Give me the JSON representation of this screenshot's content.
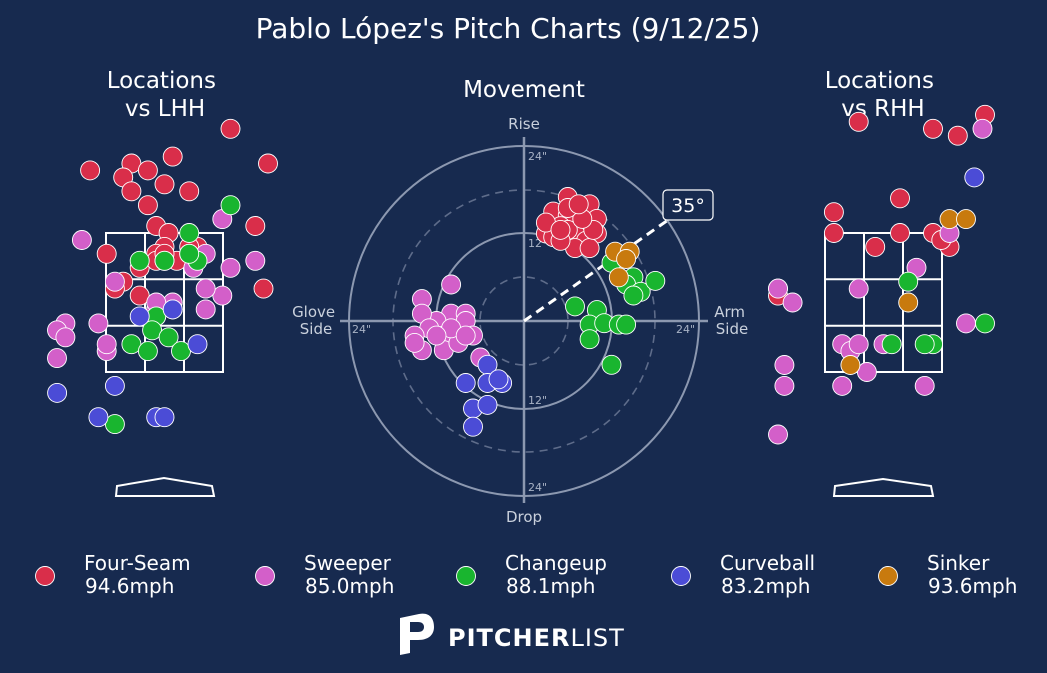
{
  "title": "Pablo López's Pitch Charts (9/12/25)",
  "colors": {
    "background": "#172a4f",
    "Four-Seam": "#d92e4a",
    "Sweeper": "#d35fc9",
    "Changeup": "#19b52f",
    "Curveball": "#4b4cd6",
    "Sinker": "#c87a0e"
  },
  "panels": {
    "lhh_title": [
      "Locations",
      "vs LHH"
    ],
    "movement_title": "Movement",
    "rhh_title": [
      "Locations",
      "vs RHH"
    ]
  },
  "movement": {
    "rise": "Rise",
    "drop": "Drop",
    "glove": [
      "Glove",
      "Side"
    ],
    "arm": [
      "Arm",
      "Side"
    ],
    "ring_labels": [
      "24\"",
      "12\"",
      "12\"",
      "24\"",
      "24\"",
      "24\""
    ],
    "arm_angle": "35°"
  },
  "legend": [
    {
      "pitch": "Four-Seam",
      "velo": "94.6mph",
      "icon": "filled-circle"
    },
    {
      "pitch": "Sweeper",
      "velo": "85.0mph",
      "icon": "filled-circle"
    },
    {
      "pitch": "Changeup",
      "velo": "88.1mph",
      "icon": "filled-circle"
    },
    {
      "pitch": "Curveball",
      "velo": "83.2mph",
      "icon": "filled-circle"
    },
    {
      "pitch": "Sinker",
      "velo": "93.6mph",
      "icon": "filled-circle"
    }
  ],
  "brand": {
    "bold": "PITCHER",
    "light": "LIST",
    "icon": "pitcherlist-logo"
  },
  "chart_data": [
    {
      "type": "scatter",
      "title": "Locations vs LHH",
      "x_units": "feet from plate center (catcher view)",
      "y_units": "feet above ground",
      "xlim": [
        -2.2,
        2.2
      ],
      "ylim": [
        0,
        5.5
      ],
      "series": [
        {
          "name": "Four-Seam",
          "points": [
            [
              -0.4,
              4.5
            ],
            [
              -0.2,
              4.4
            ],
            [
              0.1,
              4.6
            ],
            [
              -0.5,
              4.3
            ],
            [
              0.0,
              4.2
            ],
            [
              0.3,
              4.1
            ],
            [
              -0.4,
              4.1
            ],
            [
              -0.2,
              3.9
            ],
            [
              -0.1,
              3.6
            ],
            [
              0.05,
              3.5
            ],
            [
              0.4,
              3.3
            ],
            [
              -0.7,
              3.2
            ],
            [
              0.0,
              3.3
            ],
            [
              -0.1,
              3.2
            ],
            [
              0.15,
              3.1
            ],
            [
              0.3,
              3.3
            ],
            [
              -0.3,
              3.0
            ],
            [
              -0.5,
              2.8
            ],
            [
              -0.3,
              2.6
            ],
            [
              -0.6,
              2.7
            ],
            [
              -0.1,
              3.1
            ],
            [
              0.0,
              3.2
            ],
            [
              -0.9,
              4.4
            ],
            [
              1.1,
              3.6
            ],
            [
              0.8,
              5.0
            ],
            [
              1.2,
              2.7
            ],
            [
              1.6,
              4.5
            ]
          ]
        },
        {
          "name": "Sweeper",
          "points": [
            [
              0.7,
              3.7
            ],
            [
              -1.0,
              3.4
            ],
            [
              0.5,
              3.2
            ],
            [
              -0.6,
              2.8
            ],
            [
              0.0,
              3.1
            ],
            [
              0.3,
              3.2
            ],
            [
              0.35,
              3.0
            ],
            [
              0.7,
              2.6
            ],
            [
              0.1,
              2.5
            ],
            [
              -0.1,
              2.3
            ],
            [
              0.1,
              2.4
            ],
            [
              -1.2,
              2.2
            ],
            [
              -0.8,
              2.2
            ],
            [
              -1.5,
              2.1
            ],
            [
              -1.5,
              1.7
            ],
            [
              -0.7,
              1.8
            ],
            [
              -0.7,
              1.9
            ],
            [
              -1.2,
              2.0
            ],
            [
              0.5,
              2.7
            ],
            [
              0.8,
              3.0
            ],
            [
              1.1,
              3.1
            ],
            [
              -0.1,
              2.4
            ],
            [
              -0.1,
              2.5
            ],
            [
              0.5,
              2.4
            ]
          ]
        },
        {
          "name": "Changeup",
          "points": [
            [
              0.8,
              3.9
            ],
            [
              0.3,
              3.5
            ],
            [
              0.0,
              3.1
            ],
            [
              -0.3,
              3.1
            ],
            [
              0.4,
              3.1
            ],
            [
              0.3,
              3.2
            ],
            [
              -0.1,
              2.3
            ],
            [
              -0.15,
              2.1
            ],
            [
              0.05,
              2.0
            ],
            [
              -0.4,
              1.9
            ],
            [
              -0.2,
              1.8
            ],
            [
              0.2,
              1.8
            ],
            [
              -0.6,
              0.75
            ]
          ]
        },
        {
          "name": "Curveball",
          "points": [
            [
              -0.3,
              2.3
            ],
            [
              0.1,
              2.4
            ],
            [
              0.4,
              1.9
            ],
            [
              -1.3,
              1.2
            ],
            [
              -0.6,
              1.3
            ],
            [
              -0.8,
              0.85
            ],
            [
              -0.1,
              0.85
            ],
            [
              0.0,
              0.85
            ]
          ]
        },
        {
          "name": "Sinker",
          "points": []
        }
      ]
    },
    {
      "type": "scatter",
      "title": "Movement",
      "x_label": "Glove Side / Arm Side",
      "y_label": "Drop / Rise",
      "units": "inches",
      "xlim": [
        -24,
        24
      ],
      "ylim": [
        -24,
        24
      ],
      "arm_angle_deg": 35,
      "series": [
        {
          "name": "Four-Seam",
          "points": [
            [
              6,
              17
            ],
            [
              4,
              15
            ],
            [
              6,
              14.5
            ],
            [
              9,
              16
            ],
            [
              10,
              14
            ],
            [
              8,
              13
            ],
            [
              5,
              13
            ],
            [
              7,
              12
            ],
            [
              3,
              12
            ],
            [
              6,
              12.5
            ],
            [
              8.5,
              11
            ],
            [
              4,
              11.5
            ],
            [
              10,
              12
            ],
            [
              7,
              10
            ],
            [
              9,
              10
            ],
            [
              3,
              13.5
            ],
            [
              5,
              11
            ],
            [
              9.5,
              12.5
            ],
            [
              8,
              14
            ],
            [
              6,
              15.5
            ],
            [
              7.5,
              16
            ],
            [
              5,
              12.5
            ]
          ]
        },
        {
          "name": "Sweeper",
          "points": [
            [
              -10,
              5
            ],
            [
              -14,
              3
            ],
            [
              -10,
              1
            ],
            [
              -8,
              1
            ],
            [
              -12,
              0
            ],
            [
              -14,
              1
            ],
            [
              -13,
              -1
            ],
            [
              -15,
              -2
            ],
            [
              -14,
              -4
            ],
            [
              -11,
              -2
            ],
            [
              -8,
              0
            ],
            [
              -7,
              -2
            ],
            [
              -11,
              -4
            ],
            [
              -9,
              -3
            ],
            [
              -6,
              -5
            ],
            [
              -10,
              -1
            ],
            [
              -12,
              -2
            ],
            [
              -15,
              -3
            ],
            [
              -8,
              -2
            ]
          ]
        },
        {
          "name": "Changeup",
          "points": [
            [
              12,
              8
            ],
            [
              15,
              6
            ],
            [
              14,
              5
            ],
            [
              16,
              4
            ],
            [
              18,
              5.5
            ],
            [
              15,
              3.5
            ],
            [
              7,
              2
            ],
            [
              10,
              1.5
            ],
            [
              9,
              -0.5
            ],
            [
              11,
              -0.3
            ],
            [
              13,
              -0.5
            ],
            [
              14,
              -0.5
            ],
            [
              9,
              -2.5
            ],
            [
              12,
              -6
            ]
          ]
        },
        {
          "name": "Curveball",
          "points": [
            [
              -5,
              -6
            ],
            [
              -8,
              -8.5
            ],
            [
              -5,
              -8.5
            ],
            [
              -3,
              -8.5
            ],
            [
              -3.5,
              -8
            ],
            [
              -7,
              -12
            ],
            [
              -5,
              -11.5
            ],
            [
              -7,
              -14.5
            ]
          ]
        },
        {
          "name": "Sinker",
          "points": [
            [
              12.5,
              9.5
            ],
            [
              14.5,
              9.5
            ],
            [
              14,
              8.5
            ],
            [
              13,
              6
            ]
          ]
        }
      ]
    },
    {
      "type": "scatter",
      "title": "Locations vs RHH",
      "x_units": "feet from plate center (catcher view)",
      "y_units": "feet above ground",
      "xlim": [
        -2.2,
        2.2
      ],
      "ylim": [
        0,
        5.5
      ],
      "series": [
        {
          "name": "Four-Seam",
          "points": [
            [
              -0.3,
              5.1
            ],
            [
              0.6,
              5.0
            ],
            [
              0.9,
              4.9
            ],
            [
              0.2,
              4.0
            ],
            [
              -0.6,
              3.8
            ],
            [
              0.2,
              3.5
            ],
            [
              -0.6,
              3.5
            ],
            [
              0.6,
              3.5
            ],
            [
              0.8,
              3.3
            ],
            [
              0.7,
              3.4
            ],
            [
              -0.1,
              3.3
            ],
            [
              -1.3,
              2.7
            ],
            [
              -1.3,
              2.6
            ],
            [
              2.0,
              5.2
            ]
          ]
        },
        {
          "name": "Sweeper",
          "points": [
            [
              1.2,
              5.0
            ],
            [
              0.8,
              3.5
            ],
            [
              0.4,
              3.0
            ],
            [
              -0.3,
              2.7
            ],
            [
              -1.4,
              2.7
            ],
            [
              -1.1,
              2.5
            ],
            [
              -0.5,
              1.9
            ],
            [
              -1.2,
              1.6
            ],
            [
              -0.4,
              1.8
            ],
            [
              -0.3,
              1.9
            ],
            [
              0.0,
              1.9
            ],
            [
              -0.2,
              1.5
            ],
            [
              -1.2,
              1.3
            ],
            [
              -0.5,
              1.3
            ],
            [
              0.5,
              1.3
            ],
            [
              1.0,
              2.2
            ],
            [
              -1.5,
              0.6
            ]
          ]
        },
        {
          "name": "Changeup",
          "points": [
            [
              0.3,
              2.8
            ],
            [
              1.7,
              2.2
            ],
            [
              0.6,
              1.9
            ],
            [
              0.5,
              1.9
            ],
            [
              0.1,
              1.9
            ]
          ]
        },
        {
          "name": "Curveball",
          "points": [
            [
              1.1,
              4.3
            ]
          ]
        },
        {
          "name": "Sinker",
          "points": [
            [
              0.8,
              3.7
            ],
            [
              1.0,
              3.7
            ],
            [
              0.3,
              2.5
            ],
            [
              -0.4,
              1.6
            ]
          ]
        }
      ]
    }
  ]
}
